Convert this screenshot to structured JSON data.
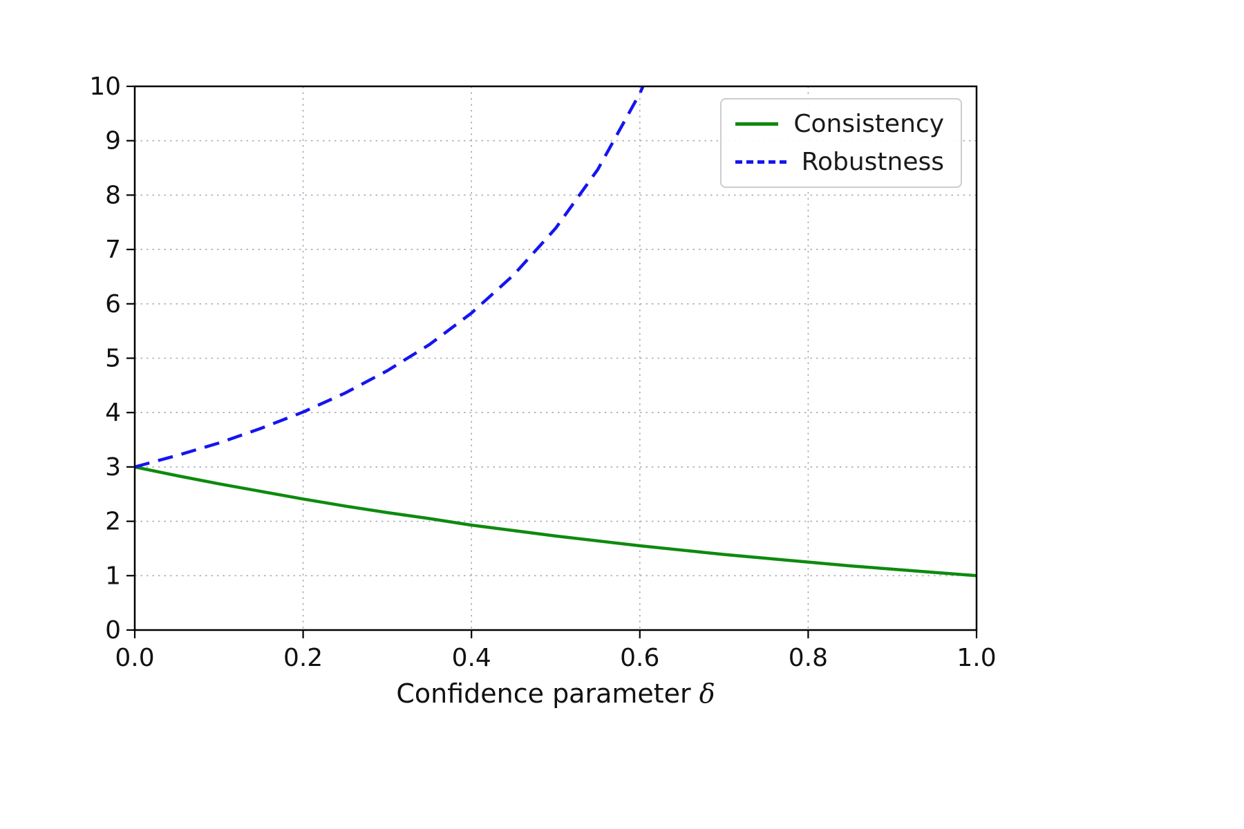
{
  "figure": {
    "background": "#ffffff",
    "xlabel_text": "Confidence parameter ",
    "xlabel_symbol": "δ"
  },
  "chart_data": {
    "type": "line",
    "title": "",
    "xlabel": "Confidence parameter δ",
    "ylabel": "",
    "xlim": [
      0.0,
      1.0
    ],
    "ylim": [
      0,
      10
    ],
    "xticks": [
      0.0,
      0.2,
      0.4,
      0.6,
      0.8,
      1.0
    ],
    "xtick_labels": [
      "0.0",
      "0.2",
      "0.4",
      "0.6",
      "0.8",
      "1.0"
    ],
    "yticks": [
      0,
      1,
      2,
      3,
      4,
      5,
      6,
      7,
      8,
      9,
      10
    ],
    "ytick_labels": [
      "0",
      "1",
      "2",
      "3",
      "4",
      "5",
      "6",
      "7",
      "8",
      "9",
      "10"
    ],
    "grid": true,
    "grid_style": "dotted",
    "grid_color": "#a8a8bc",
    "legend_position": "upper right",
    "axis_color": "#000000",
    "series": [
      {
        "name": "Consistency",
        "color": "#0e8a0e",
        "style": "solid",
        "x": [
          0.0,
          0.05,
          0.1,
          0.15,
          0.2,
          0.25,
          0.3,
          0.35,
          0.4,
          0.45,
          0.5,
          0.55,
          0.6,
          0.65,
          0.7,
          0.75,
          0.8,
          0.85,
          0.9,
          0.95,
          1.0
        ],
        "y": [
          3.0,
          2.84,
          2.69,
          2.55,
          2.41,
          2.28,
          2.16,
          2.05,
          1.93,
          1.83,
          1.73,
          1.64,
          1.55,
          1.47,
          1.39,
          1.32,
          1.25,
          1.18,
          1.12,
          1.06,
          1.0
        ]
      },
      {
        "name": "Robustness",
        "color": "#1515ef",
        "style": "dashed",
        "x": [
          0.0,
          0.05,
          0.1,
          0.15,
          0.2,
          0.25,
          0.3,
          0.35,
          0.4,
          0.45,
          0.5,
          0.55,
          0.6,
          0.625,
          0.64
        ],
        "y": [
          3.0,
          3.21,
          3.44,
          3.71,
          4.01,
          4.36,
          4.77,
          5.25,
          5.83,
          6.53,
          7.39,
          8.47,
          9.87,
          10.74,
          11.35
        ]
      }
    ]
  }
}
